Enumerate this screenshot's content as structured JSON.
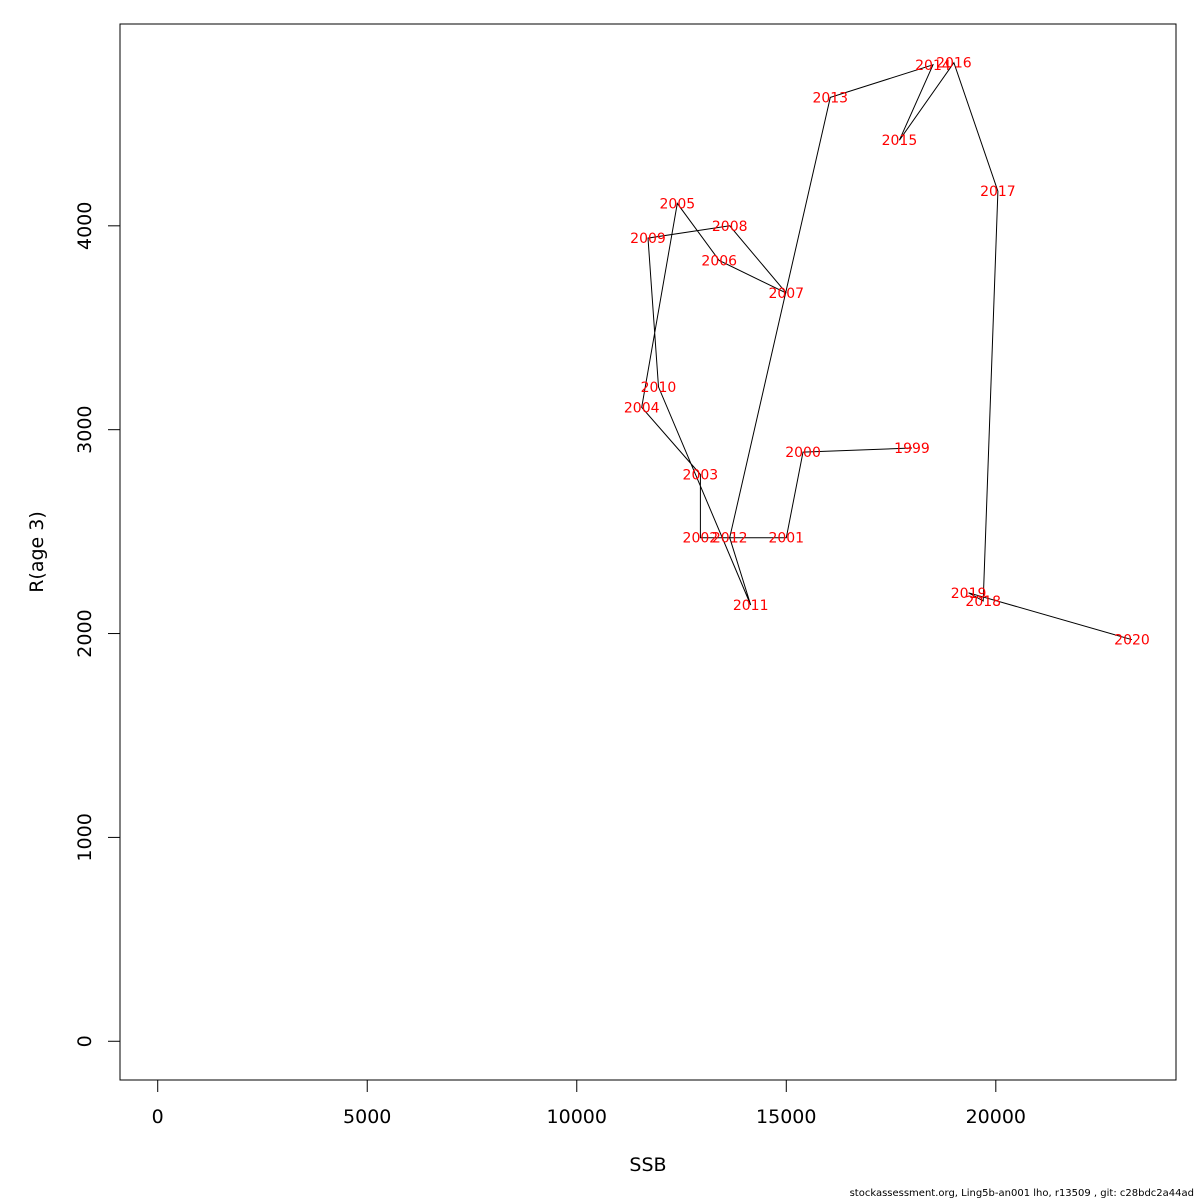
{
  "chart_data": {
    "type": "line",
    "xlabel": "SSB",
    "ylabel": "R(age 3)",
    "xlim": [
      -900,
      24300
    ],
    "ylim": [
      -190,
      4990
    ],
    "xticks": [
      0,
      5000,
      10000,
      15000,
      20000
    ],
    "yticks": [
      0,
      1000,
      2000,
      3000,
      4000
    ],
    "grid": false,
    "line_color": "#000000",
    "label_color": "#ff0000",
    "points": [
      {
        "year": "1999",
        "ssb": 18000,
        "r": 2910
      },
      {
        "year": "2000",
        "ssb": 15400,
        "r": 2890
      },
      {
        "year": "2001",
        "ssb": 15000,
        "r": 2470
      },
      {
        "year": "2002",
        "ssb": 12950,
        "r": 2470
      },
      {
        "year": "2003",
        "ssb": 12950,
        "r": 2780
      },
      {
        "year": "2004",
        "ssb": 11550,
        "r": 3110
      },
      {
        "year": "2005",
        "ssb": 12400,
        "r": 4110
      },
      {
        "year": "2006",
        "ssb": 13400,
        "r": 3830
      },
      {
        "year": "2007",
        "ssb": 15000,
        "r": 3670
      },
      {
        "year": "2008",
        "ssb": 13650,
        "r": 4000
      },
      {
        "year": "2009",
        "ssb": 11700,
        "r": 3940
      },
      {
        "year": "2010",
        "ssb": 11950,
        "r": 3210
      },
      {
        "year": "2011",
        "ssb": 14150,
        "r": 2140
      },
      {
        "year": "2012",
        "ssb": 13650,
        "r": 2470
      },
      {
        "year": "2013",
        "ssb": 16050,
        "r": 4630
      },
      {
        "year": "2014",
        "ssb": 18500,
        "r": 4790
      },
      {
        "year": "2015",
        "ssb": 17700,
        "r": 4420
      },
      {
        "year": "2016",
        "ssb": 19000,
        "r": 4800
      },
      {
        "year": "2017",
        "ssb": 20050,
        "r": 4170
      },
      {
        "year": "2018",
        "ssb": 19700,
        "r": 2160
      },
      {
        "year": "2019",
        "ssb": 19350,
        "r": 2200
      },
      {
        "year": "2020",
        "ssb": 23250,
        "r": 1970
      }
    ]
  },
  "footer": "stockassessment.org, Ling5b-an001  lho, r13509 , git: c28bdc2a44ad"
}
